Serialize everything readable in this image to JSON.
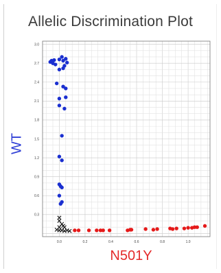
{
  "chart_data": {
    "type": "scatter",
    "title": "Allelic Discrimination Plot",
    "xlabel": "N501Y",
    "ylabel": "WT",
    "xlim": [
      -0.13,
      1.17
    ],
    "ylim": [
      -0.05,
      3.05
    ],
    "xticks": [
      "0.0",
      "0.2",
      "0.4",
      "0.6",
      "0.8",
      "1.0"
    ],
    "yticks": [
      "0.3",
      "0.6",
      "0.9",
      "1.2",
      "1.5",
      "1.8",
      "2.1",
      "2.4",
      "2.7",
      "3.0"
    ],
    "grid": true,
    "series": [
      {
        "marker": "circle",
        "color": "#1a2fd0",
        "points": [
          [
            -0.07,
            2.72
          ],
          [
            -0.06,
            2.74
          ],
          [
            -0.05,
            2.7
          ],
          [
            -0.04,
            2.75
          ],
          [
            -0.03,
            2.68
          ],
          [
            0.0,
            2.76
          ],
          [
            0.02,
            2.8
          ],
          [
            0.03,
            2.74
          ],
          [
            0.05,
            2.77
          ],
          [
            0.06,
            2.71
          ],
          [
            0.04,
            2.66
          ],
          [
            0.0,
            2.6
          ],
          [
            0.03,
            2.62
          ],
          [
            -0.02,
            2.38
          ],
          [
            0.03,
            2.33
          ],
          [
            0.05,
            2.3
          ],
          [
            0.0,
            2.14
          ],
          [
            0.05,
            2.16
          ],
          [
            0.0,
            2.03
          ],
          [
            0.04,
            1.98
          ],
          [
            0.02,
            1.55
          ],
          [
            0.0,
            1.22
          ],
          [
            0.02,
            1.16
          ],
          [
            0.0,
            0.78
          ],
          [
            0.01,
            0.75
          ],
          [
            0.02,
            0.73
          ],
          [
            0.0,
            0.6
          ],
          [
            0.02,
            0.5
          ],
          [
            0.01,
            0.47
          ]
        ]
      },
      {
        "marker": "circle",
        "color": "#e51a1a",
        "points": [
          [
            0.12,
            0.05
          ],
          [
            0.15,
            0.05
          ],
          [
            0.23,
            0.05
          ],
          [
            0.29,
            0.05
          ],
          [
            0.32,
            0.05
          ],
          [
            0.34,
            0.05
          ],
          [
            0.39,
            0.05
          ],
          [
            0.53,
            0.05
          ],
          [
            0.55,
            0.06
          ],
          [
            0.56,
            0.06
          ],
          [
            0.67,
            0.07
          ],
          [
            0.73,
            0.06
          ],
          [
            0.76,
            0.07
          ],
          [
            0.86,
            0.08
          ],
          [
            0.88,
            0.07
          ],
          [
            0.91,
            0.08
          ],
          [
            0.97,
            0.08
          ],
          [
            1.0,
            0.09
          ],
          [
            1.03,
            0.09
          ],
          [
            1.05,
            0.1
          ],
          [
            1.07,
            0.1
          ],
          [
            1.13,
            0.12
          ]
        ]
      },
      {
        "marker": "x",
        "color": "#111111",
        "points": [
          [
            0.0,
            0.25
          ],
          [
            0.0,
            0.2
          ],
          [
            0.02,
            0.15
          ],
          [
            0.0,
            0.1
          ],
          [
            0.03,
            0.12
          ],
          [
            0.04,
            0.1
          ],
          [
            0.0,
            0.05
          ],
          [
            0.02,
            0.05
          ],
          [
            0.04,
            0.04
          ],
          [
            0.06,
            0.05
          ],
          [
            0.08,
            0.04
          ],
          [
            -0.02,
            0.06
          ]
        ]
      }
    ]
  }
}
